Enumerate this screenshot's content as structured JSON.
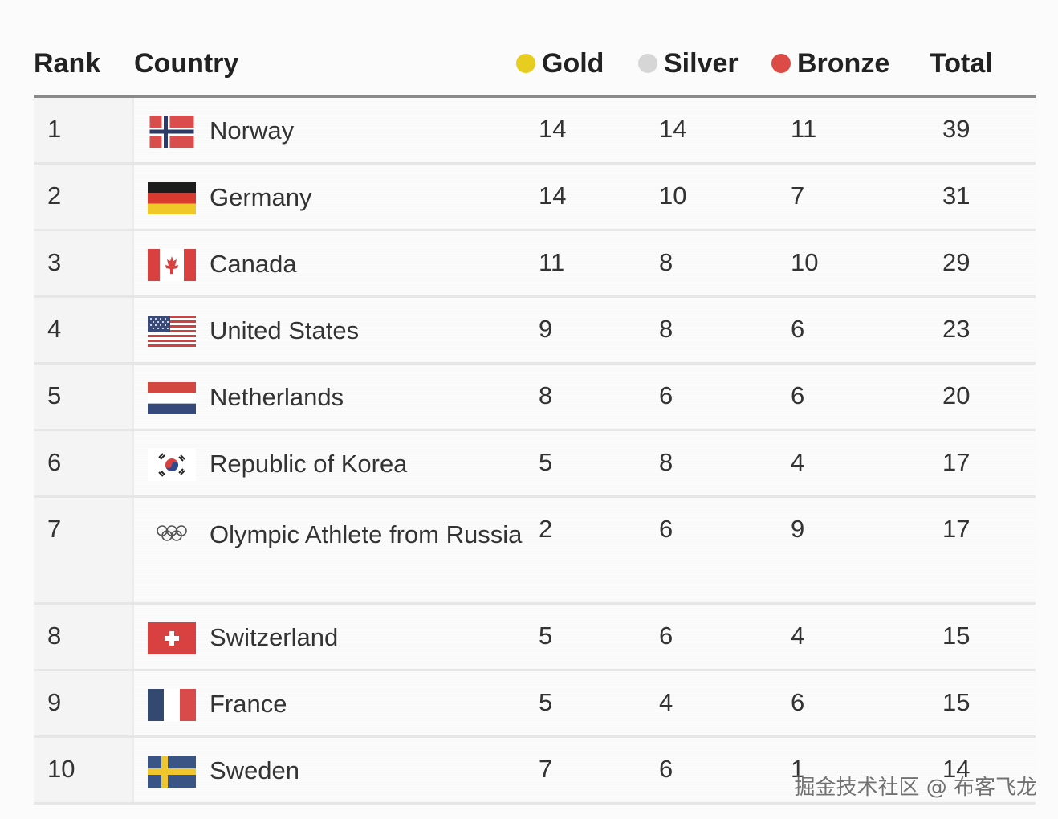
{
  "table": {
    "headers": {
      "rank": "Rank",
      "country": "Country",
      "gold": "Gold",
      "silver": "Silver",
      "bronze": "Bronze",
      "total": "Total"
    },
    "colors": {
      "gold": "#e6cd1f",
      "silver": "#d6d6d6",
      "bronze": "#dd4b46"
    },
    "rows": [
      {
        "rank": "1",
        "country": "Norway",
        "flag": "norway-flag-icon",
        "gold": "14",
        "silver": "14",
        "bronze": "11",
        "total": "39"
      },
      {
        "rank": "2",
        "country": "Germany",
        "flag": "germany-flag-icon",
        "gold": "14",
        "silver": "10",
        "bronze": "7",
        "total": "31"
      },
      {
        "rank": "3",
        "country": "Canada",
        "flag": "canada-flag-icon",
        "gold": "11",
        "silver": "8",
        "bronze": "10",
        "total": "29"
      },
      {
        "rank": "4",
        "country": "United States",
        "flag": "usa-flag-icon",
        "gold": "9",
        "silver": "8",
        "bronze": "6",
        "total": "23"
      },
      {
        "rank": "5",
        "country": "Netherlands",
        "flag": "netherlands-flag-icon",
        "gold": "8",
        "silver": "6",
        "bronze": "6",
        "total": "20"
      },
      {
        "rank": "6",
        "country": "Republic of Korea",
        "flag": "korea-flag-icon",
        "gold": "5",
        "silver": "8",
        "bronze": "4",
        "total": "17"
      },
      {
        "rank": "7",
        "country": "Olympic Athlete from Russia",
        "flag": "olympic-rings-icon",
        "gold": "2",
        "silver": "6",
        "bronze": "9",
        "total": "17"
      },
      {
        "rank": "8",
        "country": "Switzerland",
        "flag": "switzerland-flag-icon",
        "gold": "5",
        "silver": "6",
        "bronze": "4",
        "total": "15"
      },
      {
        "rank": "9",
        "country": "France",
        "flag": "france-flag-icon",
        "gold": "5",
        "silver": "4",
        "bronze": "6",
        "total": "15"
      },
      {
        "rank": "10",
        "country": "Sweden",
        "flag": "sweden-flag-icon",
        "gold": "7",
        "silver": "6",
        "bronze": "1",
        "total": "14"
      }
    ]
  },
  "watermark": "掘金技术社区 @ 布客飞龙"
}
